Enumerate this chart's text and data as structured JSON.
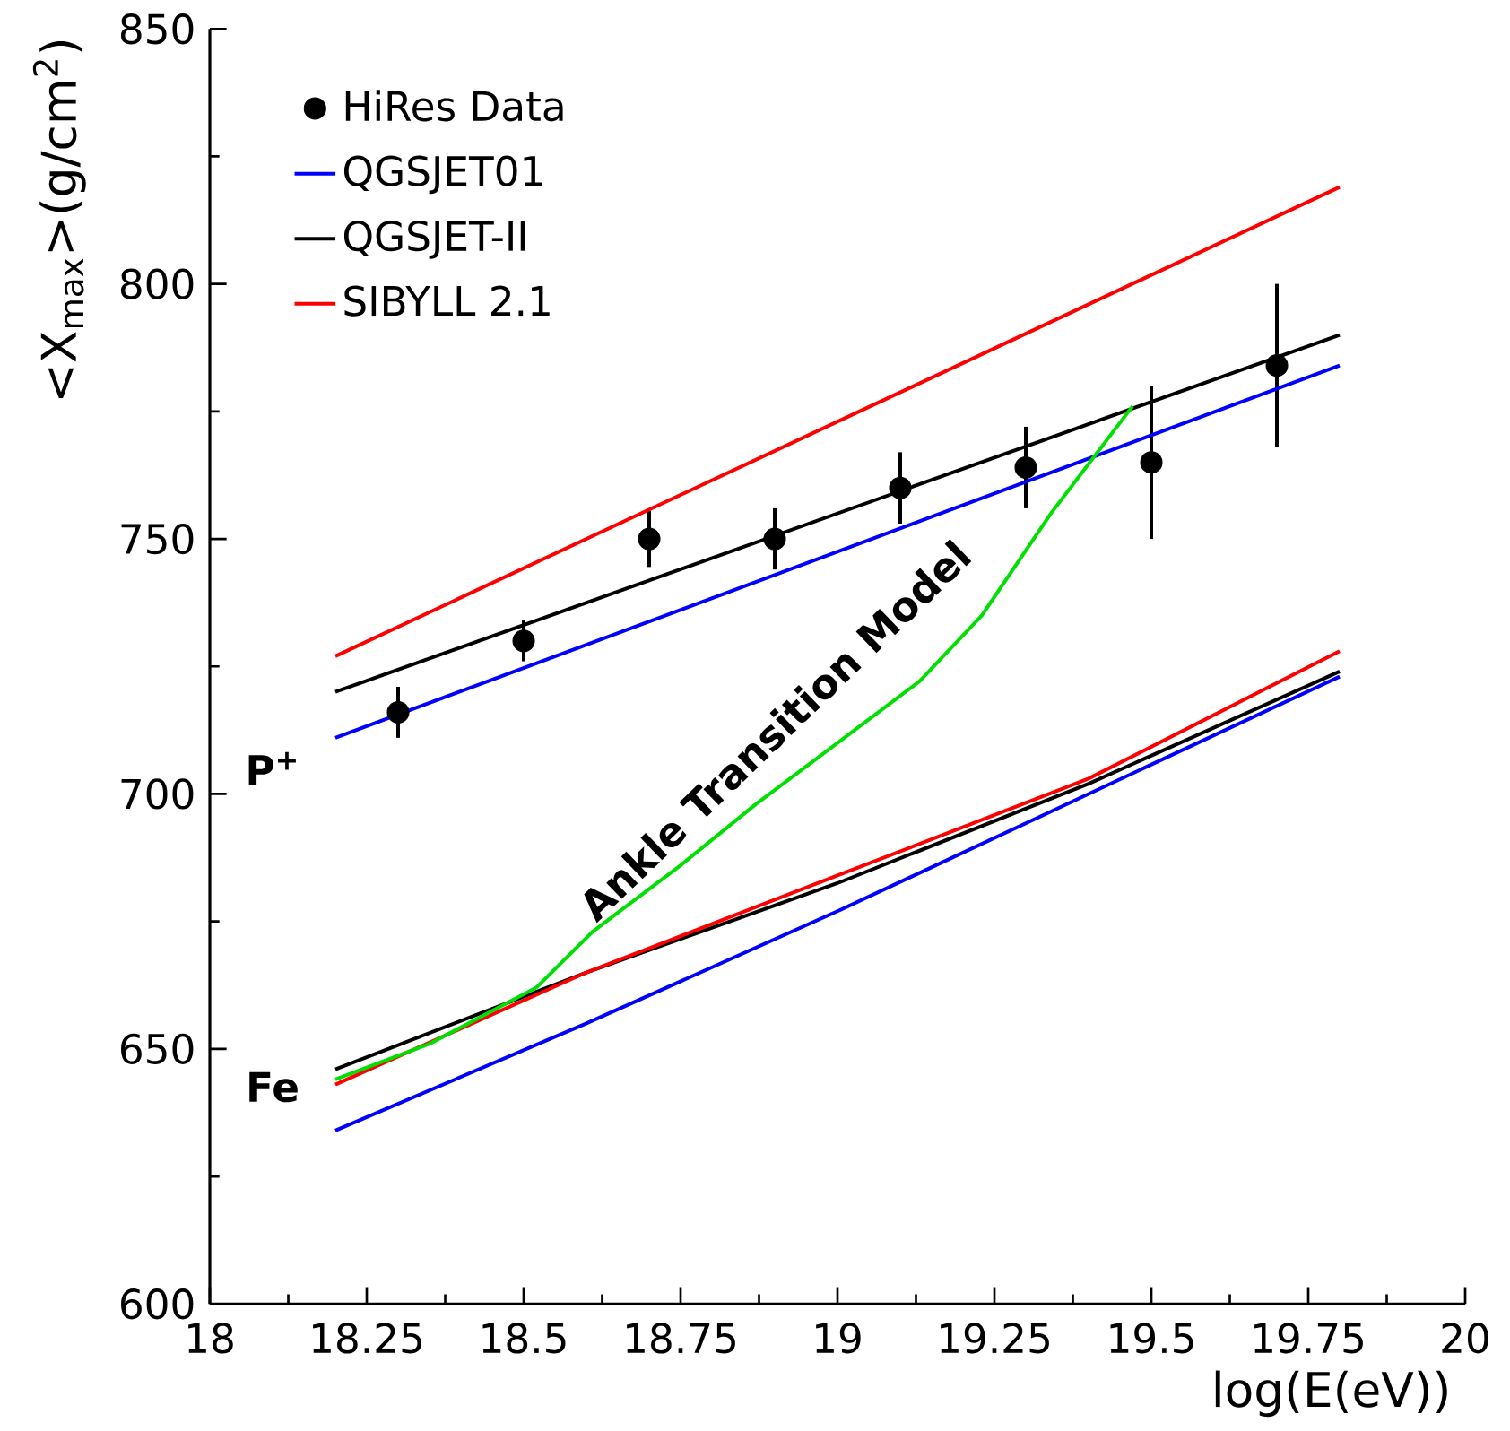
{
  "chart_data": {
    "type": "line",
    "xlabel": "log(E(eV))",
    "ylabel": "<X$_{max}$>(g/cm$^{2}$)",
    "xlim": [
      18,
      20
    ],
    "ylim": [
      600,
      850
    ],
    "xticks": [
      18,
      18.25,
      18.5,
      18.75,
      19,
      19.25,
      19.5,
      19.75,
      20
    ],
    "yticks": [
      600,
      650,
      700,
      750,
      800,
      850
    ],
    "legend": "top left",
    "series": [
      {
        "name": "HiRes Data",
        "type": "scatter",
        "marker": "circle",
        "color": "#000000",
        "x": [
          18.3,
          18.5,
          18.7,
          18.9,
          19.1,
          19.3,
          19.5,
          19.7
        ],
        "values": [
          716,
          730,
          750,
          750,
          760,
          764,
          765,
          784
        ],
        "errors": [
          5,
          4,
          5.5,
          6,
          7,
          8,
          15,
          16
        ]
      },
      {
        "name": "QGSJET01",
        "color": "#0000ff",
        "x": [
          18.2,
          19.8
        ],
        "values": [
          711,
          784
        ]
      },
      {
        "name": "QGSJET-II",
        "color": "#000000",
        "x": [
          18.2,
          19.8
        ],
        "values": [
          720,
          790
        ]
      },
      {
        "name": "SIBYLL 2.1",
        "color": "#ff0000",
        "x": [
          18.2,
          19.8
        ],
        "values": [
          727,
          819
        ]
      },
      {
        "color": "#0000ff",
        "x": [
          18.2,
          18.6,
          19.0,
          19.4,
          19.8
        ],
        "values": [
          634,
          655,
          677,
          700,
          723
        ]
      },
      {
        "color": "#000000",
        "x": [
          18.2,
          18.6,
          19.0,
          19.4,
          19.8
        ],
        "values": [
          646,
          665,
          682.5,
          702,
          724
        ]
      },
      {
        "color": "#ff0000",
        "x": [
          18.2,
          18.6,
          19.0,
          19.4,
          19.8
        ],
        "values": [
          643,
          665,
          684,
          703,
          728
        ]
      },
      {
        "color": "#00e000",
        "x": [
          18.2,
          18.35,
          18.52,
          18.61,
          18.75,
          18.87,
          19.0,
          19.13,
          19.23,
          19.34,
          19.47
        ],
        "values": [
          644,
          651,
          662,
          673,
          686,
          698,
          710,
          722,
          735,
          755,
          776
        ]
      }
    ],
    "annotations": [
      "P$^{+}$",
      "Fe",
      "Ankle Transition Model"
    ]
  }
}
